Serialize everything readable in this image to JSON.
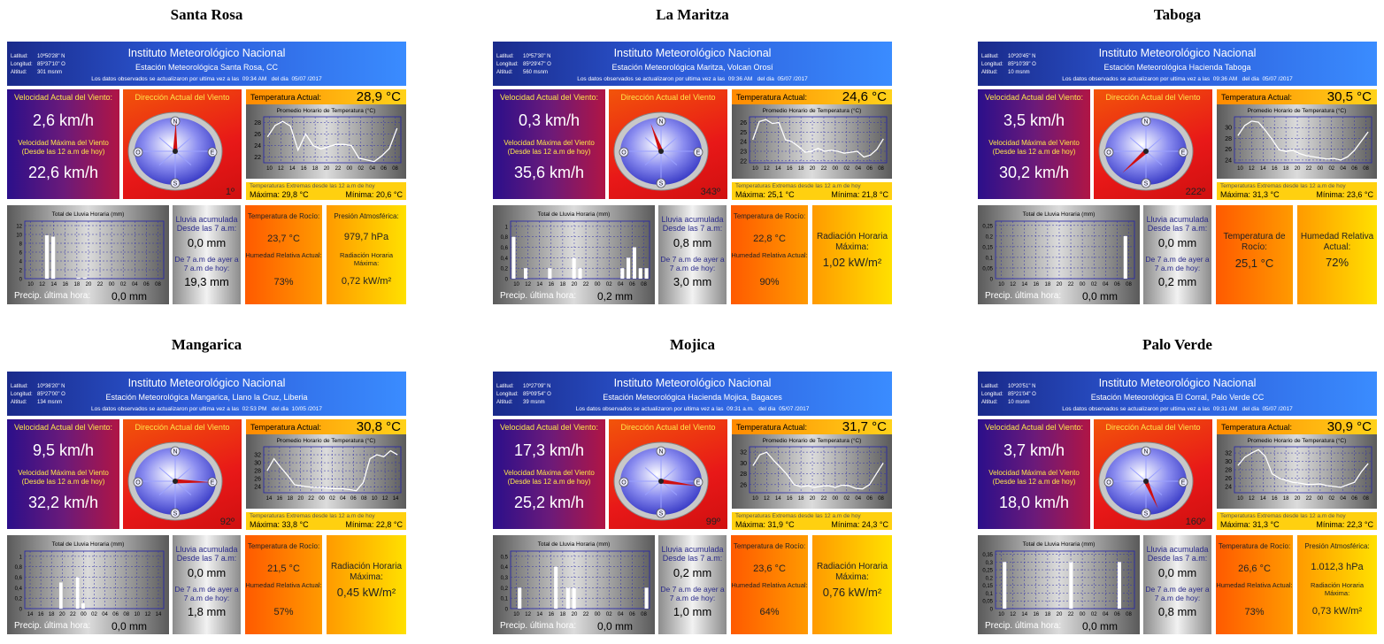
{
  "common": {
    "institute": "Instituto Meteorológico Nacional",
    "lat_label": "Latitud:",
    "lon_label": "Longitud:",
    "alt_label": "Altitud:",
    "update_prefix": "Los datos observados se actualizaron por ultima vez a las",
    "update_mid": "del dia",
    "wind_current_label": "Velocidad Actual del Viento:",
    "wind_max_label": "Velocidad Máxima del Viento (Desde las 12 a.m de hoy)",
    "wind_dir_label": "Dirección Actual del Viento",
    "temp_current_label": "Temperatura Actual:",
    "temp_chart_title": "Promedio Horario de Temperatura (°C)",
    "extremes_label": "Temperaturas Extremas desde las 12 a.m de hoy",
    "max_label": "Máxima:",
    "min_label": "Mínima:",
    "rain_chart_title": "Total de Lluvia Horaria (mm)",
    "precip_last_hour_label": "Precip. última hora:",
    "rain_acc_label": "Lluvia acumulada Desde las 7 a.m:",
    "rain_yest_label": "De 7 a.m de ayer a 7 a.m de hoy:",
    "dew_label": "Temperatura de Rocío:",
    "humidity_label": "Humedad Relativa Actual:",
    "pressure_label": "Presión Atmosférica:",
    "radiation_label": "Radiación Horaria Máxima:",
    "compass": {
      "n": "N",
      "s": "S",
      "e": "E",
      "o": "O"
    },
    "colors": {
      "header": "#2c5ad8",
      "wind_box": "#4a1880",
      "dir_box": "#e81818",
      "temp_line": "#ffffff"
    }
  },
  "stations": [
    {
      "name": "Santa Rosa",
      "station_line": "Estación Meteorológica Santa Rosa, CC",
      "lat": "10º50'28\" N",
      "lon": "85º37'10\" O",
      "alt": "301 msnm",
      "update_time": "09:34 AM",
      "update_date": "05/07 /2017",
      "wind_current": "2,6 km/h",
      "wind_max": "22,6 km/h",
      "wind_dir_deg": 1,
      "wind_dir_text": "1º",
      "temp_current": "28,9 °C",
      "temp_max": "29,8 °C",
      "temp_min": "20,6 °C",
      "precip_last_hour": "0,0 mm",
      "rain_acc": "0,0 mm",
      "rain_yest": "19,3 mm",
      "layout": "A",
      "dew": "23,7 °C",
      "humidity": "73%",
      "pressure": "979,7 hPa",
      "radiation": "0,72 kW/m²",
      "temp_chart": {
        "yticks": [
          22,
          24,
          26,
          28
        ],
        "ylim": [
          21,
          29
        ],
        "xticks": [
          "10",
          "12",
          "14",
          "16",
          "18",
          "20",
          "22",
          "00",
          "02",
          "04",
          "06",
          "08"
        ],
        "values": [
          25.5,
          27.5,
          28.2,
          27.4,
          23.2,
          26.0,
          24.0,
          23.4,
          23.8,
          24.2,
          24.2,
          24.0,
          21.8,
          21.5,
          21.2,
          22.2,
          23.5,
          27.0
        ]
      },
      "rain_chart": {
        "yticks": [
          0,
          2,
          4,
          6,
          8,
          10,
          12
        ],
        "ylim": [
          0,
          13
        ],
        "xticks": [
          "10",
          "12",
          "14",
          "16",
          "18",
          "20",
          "22",
          "00",
          "02",
          "04",
          "06",
          "08"
        ],
        "values": [
          0,
          0,
          0,
          9.8,
          9.5,
          0,
          0,
          0,
          0.2,
          0.2,
          0,
          0,
          0,
          0,
          0,
          0,
          0,
          0,
          0,
          0,
          0,
          0
        ]
      }
    },
    {
      "name": "La Maritza",
      "station_line": "Estación Meteorológica Maritza, Volcan Orosí",
      "lat": "10º57'30\" N",
      "lon": "85º29'47\" O",
      "alt": "560 msnm",
      "update_time": "09:36 AM",
      "update_date": "05/07 /2017",
      "wind_current": "0,3 km/h",
      "wind_max": "35,6 km/h",
      "wind_dir_deg": 343,
      "wind_dir_text": "343º",
      "temp_current": "24,6 °C",
      "temp_max": "25,1 °C",
      "temp_min": "21,8 °C",
      "precip_last_hour": "0,2 mm",
      "rain_acc": "0,8 mm",
      "rain_yest": "3,0 mm",
      "layout": "B",
      "radiation": "1,02 kW/m²",
      "dew": "22,8 °C",
      "humidity": "90%",
      "temp_chart": {
        "yticks": [
          22,
          23,
          24,
          25,
          26
        ],
        "ylim": [
          21.8,
          26.6
        ],
        "xticks": [
          "10",
          "12",
          "14",
          "16",
          "18",
          "20",
          "22",
          "00",
          "02",
          "04",
          "06",
          "08"
        ],
        "values": [
          24.2,
          26.1,
          26.3,
          25.9,
          26.0,
          24.2,
          24.0,
          23.5,
          22.9,
          23.0,
          23.3,
          23.0,
          23.1,
          23.0,
          22.8,
          22.9,
          23.0,
          22.4,
          22.6,
          23.2,
          24.3
        ]
      },
      "rain_chart": {
        "yticks": [
          0,
          0.2,
          0.4,
          0.6,
          0.8,
          1
        ],
        "ylim": [
          0,
          1.1
        ],
        "xticks": [
          "10",
          "12",
          "14",
          "16",
          "18",
          "20",
          "22",
          "00",
          "02",
          "04",
          "06",
          "08"
        ],
        "values": [
          0.8,
          0,
          0.2,
          0,
          0,
          0,
          0.2,
          0,
          0,
          0,
          0.4,
          0.2,
          0,
          0,
          0,
          0,
          0,
          0,
          0.2,
          0.4,
          0.6,
          0.2,
          0.2
        ]
      }
    },
    {
      "name": "Taboga",
      "station_line": "Estación Meteorológica Hacienda Taboga",
      "lat": "10º20'45\" N",
      "lon": "85º10'39\" O",
      "alt": "10 msnm",
      "update_time": "09:36 AM",
      "update_date": "05/07 /2017",
      "wind_current": "3,5 km/h",
      "wind_max": "30,2 km/h",
      "wind_dir_deg": 222,
      "wind_dir_text": "222º",
      "temp_current": "30,5 °C",
      "temp_max": "31,3 °C",
      "temp_min": "23,6 °C",
      "precip_last_hour": "0,0 mm",
      "rain_acc": "0,0 mm",
      "rain_yest": "0,2 mm",
      "layout": "C",
      "dew": "25,1 °C",
      "humidity": "72%",
      "temp_chart": {
        "yticks": [
          24,
          26,
          28,
          30
        ],
        "ylim": [
          23.5,
          32
        ],
        "xticks": [
          "10",
          "12",
          "14",
          "16",
          "18",
          "20",
          "22",
          "00",
          "02",
          "04",
          "06",
          "08"
        ],
        "values": [
          28.5,
          30.4,
          31.2,
          31.0,
          29.5,
          27.8,
          25.9,
          25.6,
          25.8,
          25.2,
          24.8,
          24.6,
          24.4,
          24.2,
          24.3,
          24.0,
          24.6,
          25.8,
          27.5,
          29.2
        ]
      },
      "rain_chart": {
        "yticks": [
          0,
          0.05,
          0.1,
          0.15,
          0.2,
          0.25
        ],
        "ylim": [
          0,
          0.27
        ],
        "xticks": [
          "10",
          "12",
          "14",
          "16",
          "18",
          "20",
          "22",
          "00",
          "02",
          "04",
          "06",
          "08"
        ],
        "values": [
          0,
          0,
          0,
          0,
          0,
          0,
          0,
          0,
          0,
          0,
          0,
          0,
          0,
          0,
          0,
          0,
          0,
          0,
          0,
          0,
          0,
          0.2,
          0
        ]
      }
    },
    {
      "name": "Mangarica",
      "station_line": "Estación Meteorológica Mangarica, Llano la Cruz, Liberia",
      "lat": "10º36'20\" N",
      "lon": "85º27'00\" O",
      "alt": "134 msnm",
      "update_time": "02:53 PM",
      "update_date": "10/05 /2017",
      "wind_current": "9,5 km/h",
      "wind_max": "32,2 km/h",
      "wind_dir_deg": 92,
      "wind_dir_text": "92º",
      "temp_current": "30,8 °C",
      "temp_max": "33,8 °C",
      "temp_min": "22,8 °C",
      "precip_last_hour": "0,0 mm",
      "rain_acc": "0,0 mm",
      "rain_yest": "1,8 mm",
      "layout": "B",
      "dew": "21,5 °C",
      "humidity": "57%",
      "radiation": "0,45 kW/m²",
      "temp_chart": {
        "yticks": [
          24,
          26,
          28,
          30,
          32
        ],
        "ylim": [
          22.5,
          34
        ],
        "xticks": [
          "14",
          "16",
          "18",
          "20",
          "22",
          "00",
          "02",
          "04",
          "06",
          "08",
          "10",
          "12",
          "14"
        ],
        "values": [
          28.0,
          31.0,
          28.8,
          26.8,
          24.5,
          24.2,
          24.0,
          23.8,
          23.8,
          23.6,
          23.5,
          23.5,
          23.3,
          23.0,
          25.0,
          31.0,
          32.0,
          31.5,
          33.0,
          32.0
        ]
      },
      "rain_chart": {
        "yticks": [
          0,
          0.2,
          0.4,
          0.6,
          0.8,
          1
        ],
        "ylim": [
          0,
          1.1
        ],
        "xticks": [
          "14",
          "16",
          "18",
          "20",
          "22",
          "00",
          "02",
          "04",
          "06",
          "08",
          "10",
          "12",
          "14"
        ],
        "values": [
          0,
          0,
          0,
          0,
          0,
          0,
          0.5,
          0,
          0,
          0.6,
          0.1,
          0,
          0,
          0,
          0,
          0,
          0,
          0,
          0,
          0,
          0,
          0,
          0,
          0,
          0
        ]
      }
    },
    {
      "name": "Mojica",
      "station_line": "Estación Meteorológica Hacienda Mojica, Bagaces",
      "lat": "10º27'09\" N",
      "lon": "85º09'54\" O",
      "alt": "39 msnm",
      "update_time": "09:31 a.m.",
      "update_date": "05/07 /2017",
      "wind_current": "17,3 km/h",
      "wind_max": "25,2 km/h",
      "wind_dir_deg": 99,
      "wind_dir_text": "99º",
      "temp_current": "31,7 °C",
      "temp_max": "31,9 °C",
      "temp_min": "24,3 °C",
      "precip_last_hour": "0,0 mm",
      "rain_acc": "0,2 mm",
      "rain_yest": "1,0 mm",
      "layout": "B",
      "dew": "23,6 °C",
      "humidity": "64%",
      "radiation": "0,76 kW/m²",
      "temp_chart": {
        "yticks": [
          26,
          28,
          30,
          32
        ],
        "ylim": [
          24.5,
          33
        ],
        "xticks": [
          "10",
          "12",
          "14",
          "16",
          "18",
          "20",
          "22",
          "00",
          "02",
          "04",
          "06",
          "08"
        ],
        "values": [
          29.5,
          31.5,
          32.0,
          30.5,
          29.2,
          27.8,
          26.0,
          25.6,
          25.8,
          25.5,
          25.7,
          25.8,
          25.5,
          25.9,
          25.8,
          25.3,
          25.2,
          26.0,
          28.0,
          30.0
        ]
      },
      "rain_chart": {
        "yticks": [
          0,
          0.1,
          0.2,
          0.3,
          0.4,
          0.5
        ],
        "ylim": [
          0,
          0.55
        ],
        "xticks": [
          "10",
          "12",
          "14",
          "16",
          "18",
          "20",
          "22",
          "00",
          "02",
          "04",
          "06",
          "08"
        ],
        "values": [
          0,
          0.2,
          0,
          0,
          0,
          0,
          0,
          0.4,
          0,
          0.2,
          0.2,
          0,
          0,
          0,
          0,
          0,
          0,
          0,
          0,
          0,
          0,
          0,
          0.2
        ]
      }
    },
    {
      "name": "Palo Verde",
      "station_line": "Estación Meteorológica El Corral, Palo Verde CC",
      "lat": "10º20'51\" N",
      "lon": "85º21'04\" O",
      "alt": "10 msnm",
      "update_time": "09:31 AM",
      "update_date": "05/07 /2017",
      "wind_current": "3,7 km/h",
      "wind_max": "18,0 km/h",
      "wind_dir_deg": 160,
      "wind_dir_text": "160º",
      "temp_current": "30,9 °C",
      "temp_max": "31,3 °C",
      "temp_min": "22,3 °C",
      "precip_last_hour": "0,0 mm",
      "rain_acc": "0,0 mm",
      "rain_yest": "0,8 mm",
      "layout": "A",
      "dew": "26,6 °C",
      "humidity": "73%",
      "pressure": "1.012,3 hPa",
      "radiation": "0,73 kW/m²",
      "temp_chart": {
        "yticks": [
          24,
          26,
          28,
          30,
          32
        ],
        "ylim": [
          22.5,
          33.5
        ],
        "xticks": [
          "10",
          "12",
          "14",
          "16",
          "18",
          "20",
          "22",
          "00",
          "02",
          "04",
          "06",
          "08"
        ],
        "values": [
          29.0,
          31.0,
          32.0,
          32.8,
          31.2,
          27.0,
          26.0,
          25.5,
          25.0,
          24.8,
          24.5,
          24.5,
          24.6,
          24.2,
          24.0,
          23.8,
          24.4,
          25.0,
          27.5,
          29.5
        ]
      },
      "rain_chart": {
        "yticks": [
          0,
          0.05,
          0.1,
          0.15,
          0.2,
          0.25,
          0.3,
          0.35
        ],
        "ylim": [
          0,
          0.37
        ],
        "xticks": [
          "10",
          "12",
          "14",
          "16",
          "18",
          "20",
          "22",
          "00",
          "02",
          "04",
          "06",
          "08"
        ],
        "values": [
          0,
          0.3,
          0,
          0,
          0,
          0,
          0,
          0,
          0,
          0,
          0,
          0,
          0.3,
          0,
          0,
          0,
          0,
          0,
          0,
          0,
          0.3,
          0,
          0
        ]
      }
    }
  ]
}
